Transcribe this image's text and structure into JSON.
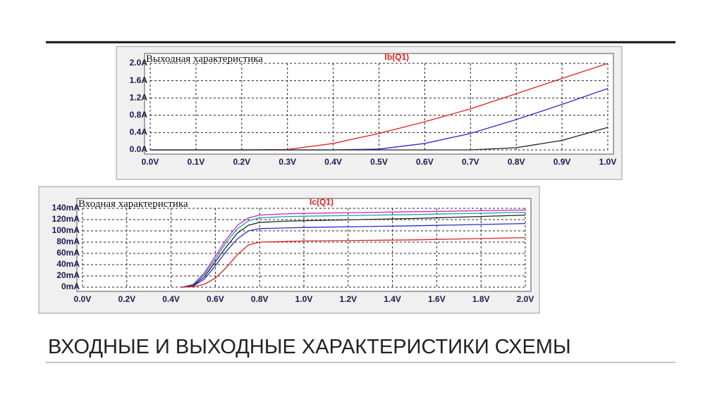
{
  "slide_title": "ВХОДНЫЕ И ВЫХОДНЫЕ ХАРАКТЕРИСТИКИ СХЕМЫ",
  "chart_data": [
    {
      "type": "line",
      "title": "Выходная характеристика",
      "legend_label": "Ib(Q1)",
      "x": [
        0,
        0.1,
        0.2,
        0.3,
        0.4,
        0.5,
        0.6,
        0.7,
        0.8,
        0.9,
        1.0
      ],
      "series": [
        {
          "color": "#e02020",
          "values": [
            0,
            0,
            0,
            0.01,
            0.15,
            0.38,
            0.65,
            0.95,
            1.3,
            1.65,
            2.0
          ]
        },
        {
          "color": "#2a2ad0",
          "values": [
            0,
            0,
            0,
            0,
            0,
            0.02,
            0.15,
            0.38,
            0.7,
            1.05,
            1.42
          ]
        },
        {
          "color": "#202020",
          "values": [
            0,
            0,
            0,
            0,
            0,
            0,
            0,
            0,
            0.05,
            0.22,
            0.52
          ]
        }
      ],
      "xlim": [
        0,
        1.0
      ],
      "xticks": [
        {
          "value": 0,
          "label": "0.0V"
        },
        {
          "value": 0.1,
          "label": "0.1V"
        },
        {
          "value": 0.2,
          "label": "0.2V"
        },
        {
          "value": 0.3,
          "label": "0.3V"
        },
        {
          "value": 0.4,
          "label": "0.4V"
        },
        {
          "value": 0.5,
          "label": "0.5V"
        },
        {
          "value": 0.6,
          "label": "0.6V"
        },
        {
          "value": 0.7,
          "label": "0.7V"
        },
        {
          "value": 0.8,
          "label": "0.8V"
        },
        {
          "value": 0.9,
          "label": "0.9V"
        },
        {
          "value": 1.0,
          "label": "1.0V"
        }
      ],
      "ylim": [
        0,
        2.0
      ],
      "yticks": [
        {
          "value": 0,
          "label": "0.0A"
        },
        {
          "value": 0.4,
          "label": "0.4A"
        },
        {
          "value": 0.8,
          "label": "0.8A"
        },
        {
          "value": 1.2,
          "label": "1.2A"
        },
        {
          "value": 1.6,
          "label": "1.6A"
        },
        {
          "value": 2.0,
          "label": "2.0A"
        }
      ],
      "grid": true
    },
    {
      "type": "line",
      "title": "Входная характеристика",
      "legend_label": "Ic(Q1)",
      "x": [
        0.45,
        0.5,
        0.55,
        0.6,
        0.65,
        0.7,
        0.75,
        0.8,
        0.9,
        1.0,
        1.5,
        2.0
      ],
      "series": [
        {
          "color": "#d020d0",
          "values": [
            0,
            5,
            25,
            55,
            85,
            110,
            123,
            128,
            130,
            131,
            134,
            137
          ]
        },
        {
          "color": "#20a0a0",
          "values": [
            0,
            4,
            22,
            50,
            80,
            104,
            118,
            123,
            125,
            126,
            129,
            133
          ]
        },
        {
          "color": "#202020",
          "values": [
            0,
            3,
            18,
            45,
            72,
            96,
            110,
            115,
            117,
            118,
            122,
            128
          ]
        },
        {
          "color": "#2a2ad0",
          "values": [
            0,
            2,
            14,
            38,
            64,
            86,
            100,
            104,
            105,
            106,
            109,
            113
          ]
        },
        {
          "color": "#e02020",
          "values": [
            0,
            1,
            5,
            16,
            35,
            58,
            75,
            80,
            81,
            82,
            84,
            88
          ]
        }
      ],
      "xlim": [
        0,
        2.0
      ],
      "xticks": [
        {
          "value": 0,
          "label": "0.0V"
        },
        {
          "value": 0.2,
          "label": "0.2V"
        },
        {
          "value": 0.4,
          "label": "0.4V"
        },
        {
          "value": 0.6,
          "label": "0.6V"
        },
        {
          "value": 0.8,
          "label": "0.8V"
        },
        {
          "value": 1.0,
          "label": "1.0V"
        },
        {
          "value": 1.2,
          "label": "1.2V"
        },
        {
          "value": 1.4,
          "label": "1.4V"
        },
        {
          "value": 1.6,
          "label": "1.6V"
        },
        {
          "value": 1.8,
          "label": "1.8V"
        },
        {
          "value": 2.0,
          "label": "2.0V"
        }
      ],
      "ylim": [
        0,
        140
      ],
      "yticks": [
        {
          "value": 0,
          "label": "0mA"
        },
        {
          "value": 20,
          "label": "20mA"
        },
        {
          "value": 40,
          "label": "40mA"
        },
        {
          "value": 60,
          "label": "60mA"
        },
        {
          "value": 80,
          "label": "80mA"
        },
        {
          "value": 100,
          "label": "100mA"
        },
        {
          "value": 120,
          "label": "120mA"
        },
        {
          "value": 140,
          "label": "140mA"
        }
      ],
      "grid": true
    }
  ]
}
